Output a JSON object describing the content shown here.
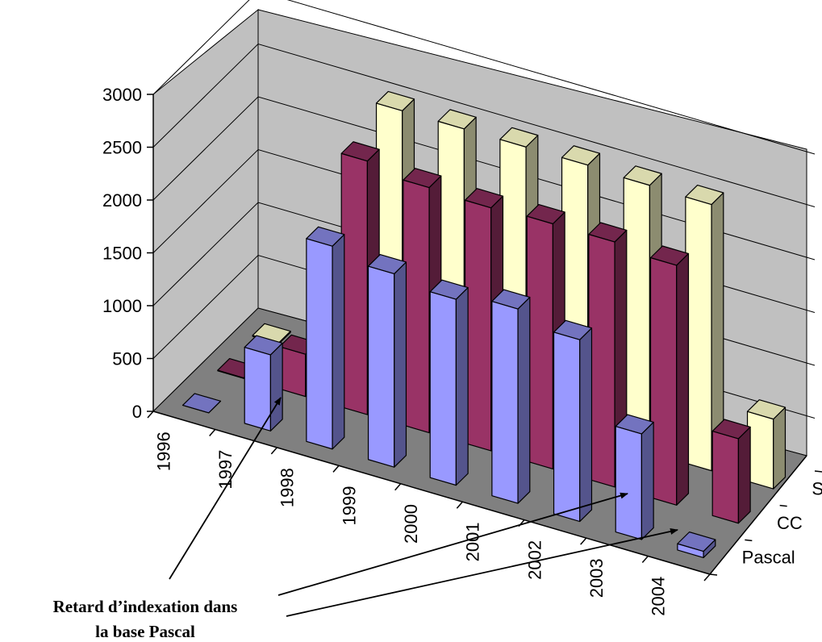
{
  "chart_data": {
    "type": "bar",
    "subtype": "3d-column",
    "categories": [
      "1996",
      "1997",
      "1998",
      "1999",
      "2000",
      "2001",
      "2002",
      "2003",
      "2004"
    ],
    "series": [
      {
        "name": "Pascal",
        "values": [
          0,
          720,
          1920,
          1830,
          1760,
          1840,
          1720,
          1000,
          60
        ]
      },
      {
        "name": "CC",
        "values": [
          5,
          400,
          2400,
          2320,
          2300,
          2320,
          2320,
          2270,
          800
        ]
      },
      {
        "name": "Sci",
        "values": [
          10,
          120,
          2550,
          2550,
          2550,
          2550,
          2530,
          2520,
          660
        ]
      }
    ],
    "ylim": [
      0,
      3000
    ],
    "yticks": [
      "0",
      "500",
      "1000",
      "1500",
      "2000",
      "2500",
      "3000"
    ],
    "grid": true,
    "colors": {
      "Pascal": "#9999ff",
      "CC": "#993366",
      "Sci": "#ffffcc",
      "floor": "#808080",
      "walls": "#c0c0c0"
    },
    "annotation": {
      "line1": "Retard d’indexation dans",
      "line2": "la base Pascal"
    }
  }
}
